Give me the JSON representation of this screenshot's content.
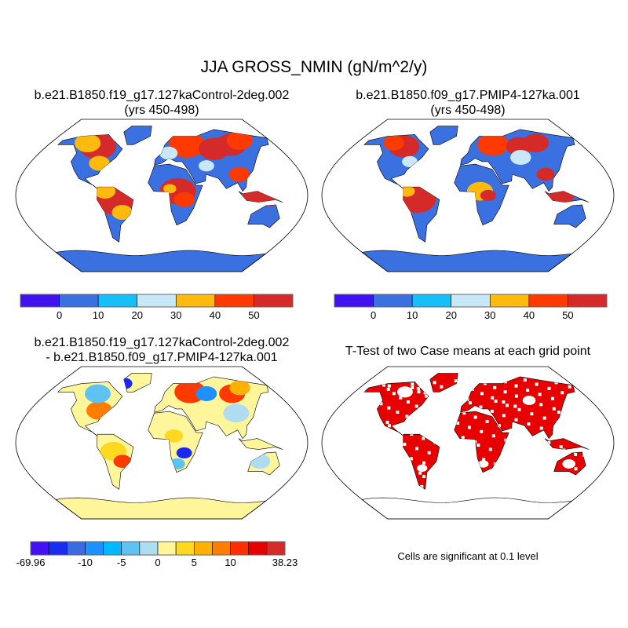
{
  "title": "JJA GROSS_NMIN (gN/m^2/y)",
  "panels": [
    {
      "id": "case1",
      "title_lines": [
        "b.e21.B1850.f19_g17.127kaControl-2deg.002",
        "(yrs 450-498)"
      ],
      "base_color": "#3a70e0",
      "antarctica_color": "#3a70e0",
      "patches": [
        [
          -100,
          58,
          14,
          "#d42a2a"
        ],
        [
          -120,
          62,
          10,
          "#ffba10"
        ],
        [
          -60,
          -5,
          16,
          "#d42a2a"
        ],
        [
          -70,
          5,
          8,
          "#ffba10"
        ],
        [
          -50,
          -20,
          8,
          "#ffba10"
        ],
        [
          20,
          5,
          14,
          "#d42a2a"
        ],
        [
          28,
          -5,
          8,
          "#ff3a00"
        ],
        [
          10,
          8,
          5,
          "#ffba10"
        ],
        [
          40,
          60,
          14,
          "#ff3a00"
        ],
        [
          80,
          55,
          12,
          "#d42a2a"
        ],
        [
          110,
          60,
          12,
          "#d42a2a"
        ],
        [
          130,
          65,
          10,
          "#ff3a00"
        ],
        [
          10,
          50,
          7,
          "#c8e8f8"
        ],
        [
          100,
          25,
          8,
          "#ff3a00"
        ],
        [
          115,
          0,
          10,
          "#d42a2a"
        ],
        [
          135,
          -5,
          7,
          "#d42a2a"
        ],
        [
          -85,
          38,
          8,
          "#ffba10"
        ],
        [
          60,
          35,
          6,
          "#c8e8f8"
        ]
      ]
    },
    {
      "id": "case2",
      "title_lines": [
        "b.e21.B1850.f09_g17.PMIP4-127ka.001",
        "(yrs 450-498)"
      ],
      "base_color": "#3a70e0",
      "antarctica_color": "#3a70e0",
      "patches": [
        [
          -100,
          58,
          12,
          "#d42a2a"
        ],
        [
          -120,
          62,
          8,
          "#ff3a00"
        ],
        [
          -62,
          -5,
          14,
          "#d42a2a"
        ],
        [
          -75,
          5,
          6,
          "#ffba10"
        ],
        [
          15,
          5,
          10,
          "#ffba10"
        ],
        [
          25,
          0,
          6,
          "#d42a2a"
        ],
        [
          40,
          60,
          12,
          "#ff3a00"
        ],
        [
          80,
          58,
          10,
          "#d42a2a"
        ],
        [
          110,
          62,
          10,
          "#d42a2a"
        ],
        [
          100,
          25,
          7,
          "#d42a2a"
        ],
        [
          115,
          0,
          10,
          "#d42a2a"
        ],
        [
          75,
          45,
          8,
          "#c8e8f8"
        ],
        [
          -80,
          40,
          6,
          "#c8e8f8"
        ]
      ]
    },
    {
      "id": "diff",
      "title_lines": [
        "b.e21.B1850.f19_g17.127kaControl-2deg.002",
        "- b.e21.B1850.f09_g17.PMIP4-127ka.001"
      ],
      "base_color": "#fff59a",
      "antarctica_color": "#fff59a",
      "patches": [
        [
          -85,
          38,
          10,
          "#ff7e00"
        ],
        [
          -100,
          58,
          10,
          "#5ec3f0"
        ],
        [
          -65,
          70,
          6,
          "#1a28f0"
        ],
        [
          -60,
          -10,
          10,
          "#ffd820"
        ],
        [
          -50,
          -22,
          7,
          "#ff3a00"
        ],
        [
          15,
          8,
          7,
          "#ffd820"
        ],
        [
          28,
          -12,
          6,
          "#1a28f0"
        ],
        [
          45,
          60,
          12,
          "#ff3a00"
        ],
        [
          70,
          58,
          8,
          "#1e90ff"
        ],
        [
          110,
          58,
          10,
          "#ff3a00"
        ],
        [
          130,
          65,
          8,
          "#ffb000"
        ],
        [
          100,
          35,
          10,
          "#b0dcf2"
        ],
        [
          125,
          -22,
          8,
          "#b0dcf2"
        ],
        [
          20,
          -25,
          6,
          "#5ec3f0"
        ]
      ]
    },
    {
      "id": "ttest",
      "title_lines": [
        "T-Test of two Case means at each grid point"
      ],
      "base_color": "#e60000",
      "antarctica_color": "#ffffff",
      "patches": [
        [
          -100,
          60,
          6,
          "#ffffff"
        ],
        [
          20,
          -25,
          4,
          "#ffffff"
        ],
        [
          90,
          50,
          5,
          "#ffffff"
        ],
        [
          -60,
          -30,
          4,
          "#ffffff"
        ],
        [
          130,
          -25,
          5,
          "#ffffff"
        ]
      ]
    }
  ],
  "colorbar_top": {
    "colors": [
      "#4012f0",
      "#3a70e0",
      "#14c0f8",
      "#c8e8f8",
      "#ffba10",
      "#ff3a00",
      "#d42a2a"
    ],
    "labels": [
      "0",
      "10",
      "20",
      "30",
      "40",
      "50"
    ]
  },
  "colorbar_bottom": {
    "colors": [
      "#4412f0",
      "#1a2cf0",
      "#3c6ae0",
      "#1e90ff",
      "#00b8ff",
      "#5ec3f0",
      "#b0dcf2",
      "#fff59a",
      "#ffd820",
      "#ffb000",
      "#ff7e00",
      "#ff3000",
      "#e60000",
      "#d42a2a"
    ],
    "labels": [
      {
        "text": "-69.96",
        "boundary": 0
      },
      {
        "text": "-10",
        "boundary": 3
      },
      {
        "text": "-5",
        "boundary": 5
      },
      {
        "text": "0",
        "boundary": 7
      },
      {
        "text": "5",
        "boundary": 9
      },
      {
        "text": "10",
        "boundary": 11
      },
      {
        "text": "38.23",
        "boundary": 14
      }
    ]
  },
  "note": "Cells are significant at 0.1 level"
}
